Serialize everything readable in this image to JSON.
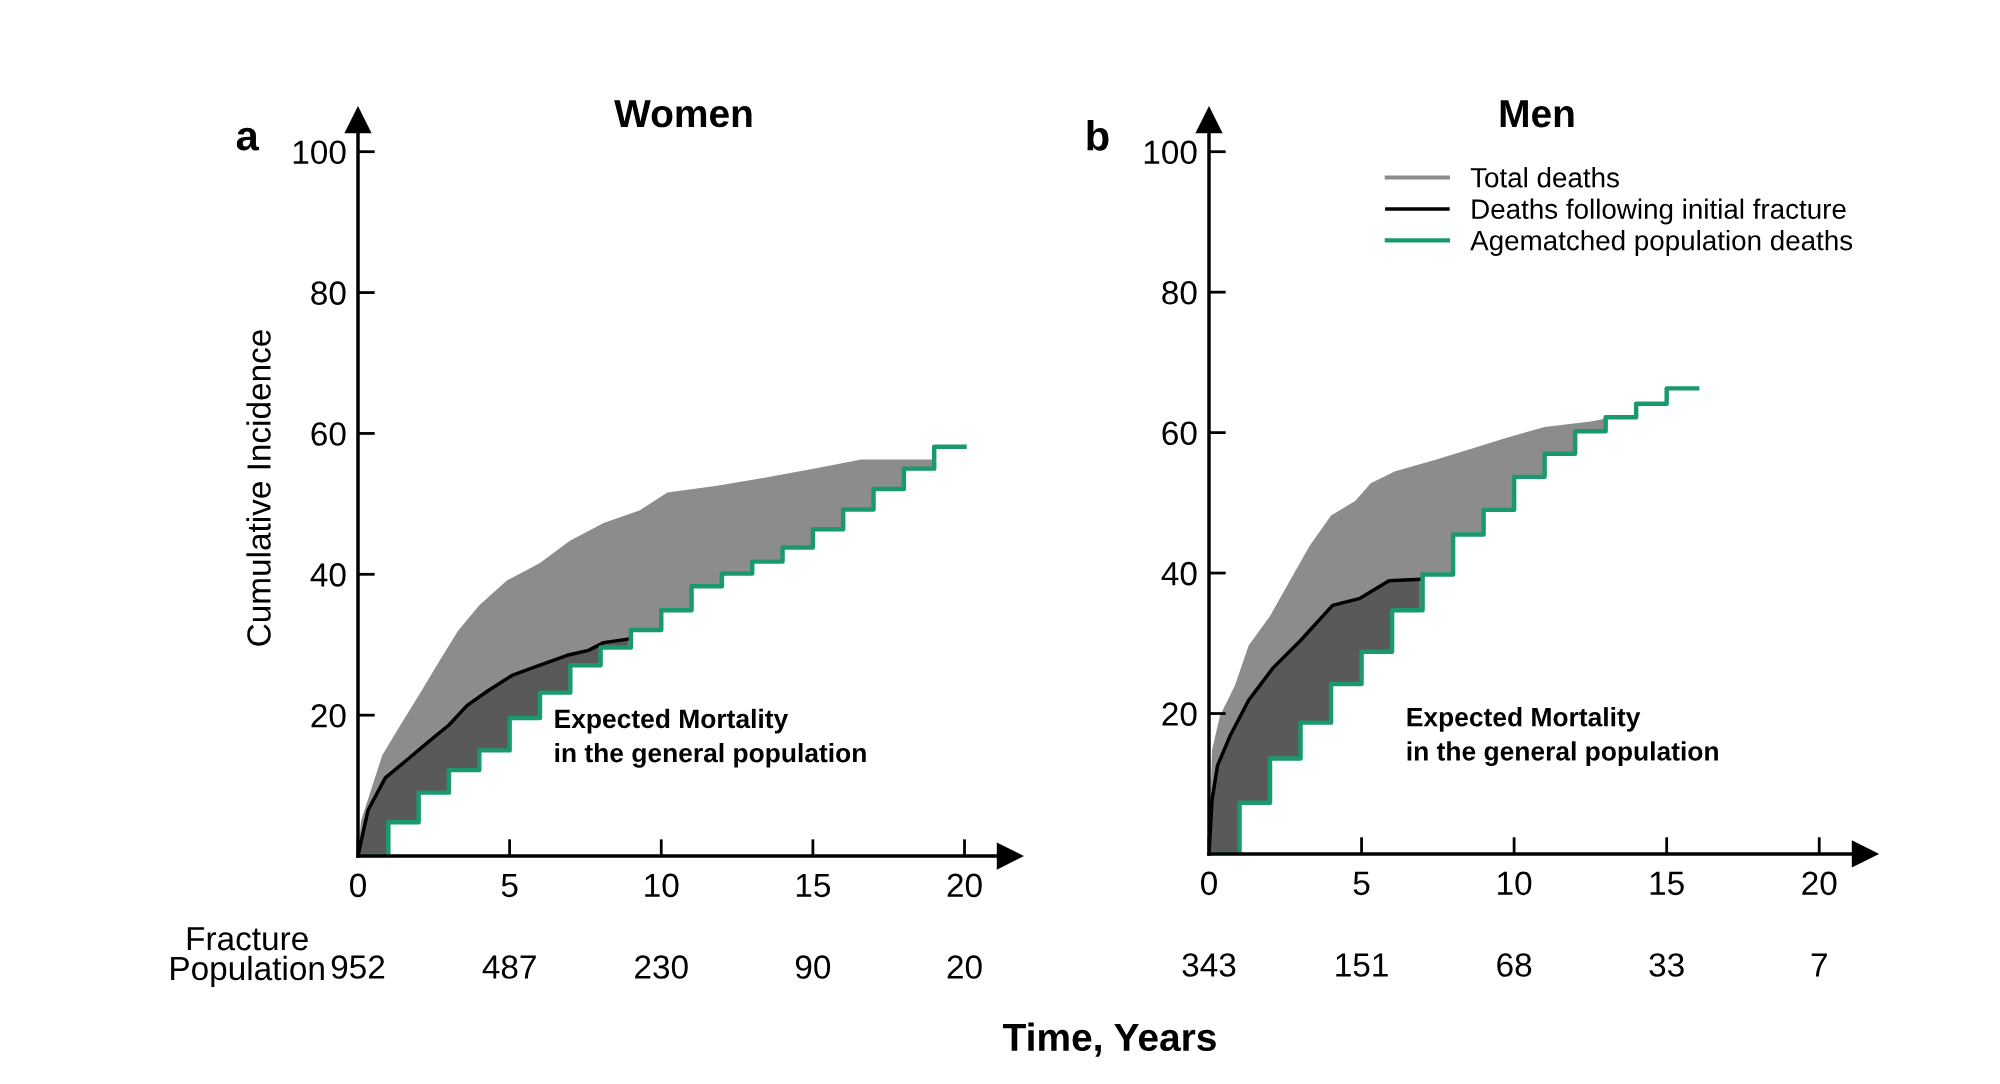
{
  "chart_data": [
    {
      "type": "area",
      "title": "Women",
      "ylabel": "Cumulative Incidence",
      "xlabel": "Time, Years",
      "xlim": [
        0,
        21.5
      ],
      "ylim": [
        0,
        104.5
      ],
      "xticks": [
        0,
        5,
        10,
        15,
        20
      ],
      "yticks": [
        20,
        40,
        60,
        80,
        100
      ],
      "grid": false,
      "legend": false,
      "series": [
        {
          "color": "#8c8c8c",
          "x": [
            0,
            0.1,
            0.8,
            1.4,
            2.0,
            2.7,
            3.3,
            4.0,
            4.9,
            6.0,
            7.0,
            8.1,
            9.3,
            10.2,
            11.9,
            13.4,
            14.8,
            16.6,
            19.0
          ],
          "values": [
            0,
            5,
            14.3,
            18.6,
            22.8,
            27.8,
            32,
            35.6,
            39.1,
            41.6,
            44.8,
            47.3,
            49.1,
            51.6,
            52.6,
            53.7,
            54.8,
            56.3,
            56.3
          ]
        },
        {
          "color": "#000000",
          "line_style": "solid",
          "x": [
            0,
            0.15,
            0.33,
            0.9,
            1.6,
            2.4,
            3.0,
            3.6,
            4.3,
            5.1,
            6.0,
            6.9,
            7.6,
            8.1,
            8.9
          ],
          "values": [
            0,
            3,
            6.5,
            11.1,
            13.6,
            16.5,
            18.6,
            21.4,
            23.5,
            25.7,
            27.1,
            28.5,
            29.2,
            30.3,
            30.8
          ]
        },
        {
          "type": "step",
          "color": "#1a9a6c",
          "x": [
            0,
            1,
            2,
            3,
            4,
            5,
            6,
            7,
            8,
            9,
            10,
            11,
            12,
            13,
            14,
            15,
            16,
            17,
            18,
            19,
            20
          ],
          "values": [
            0,
            4.8,
            9.0,
            12.2,
            15.0,
            19.6,
            23.2,
            27.1,
            29.6,
            32.1,
            34.9,
            38.3,
            40.1,
            41.8,
            43.8,
            46.4,
            49.2,
            52.1,
            55.0,
            58.1,
            58.1
          ]
        }
      ],
      "annotations": [
        "a",
        "Expected Mortality\nin the general population",
        "Fracture\nPopulation",
        "952",
        "487",
        "230",
        "90",
        "20"
      ]
    },
    {
      "type": "area",
      "title": "Men",
      "xlim": [
        0,
        21.5
      ],
      "ylim": [
        0,
        104.5
      ],
      "xticks": [
        0,
        5,
        10,
        15,
        20
      ],
      "yticks": [
        20,
        40,
        60,
        80,
        100
      ],
      "grid": false,
      "legend": "top right",
      "series": [
        {
          "name": "Total deaths",
          "color": "#8c8c8c",
          "x": [
            0,
            0.1,
            0.36,
            0.85,
            1.3,
            2.0,
            2.65,
            3.3,
            4.0,
            4.8,
            5.3,
            6.1,
            7.4,
            8.6,
            9.7,
            11.0,
            12.5,
            13.5
          ],
          "values": [
            0,
            14.8,
            19.7,
            24,
            29.7,
            33.9,
            38.9,
            43.9,
            48.2,
            50.3,
            52.8,
            54.5,
            56.1,
            57.7,
            59.2,
            60.8,
            61.6,
            62.4
          ]
        },
        {
          "name": "Deaths following initial fracture",
          "color": "#000000",
          "line_style": "solid",
          "x": [
            0,
            0.1,
            0.28,
            0.7,
            1.3,
            2.1,
            3.0,
            4.05,
            4.95,
            5.9,
            6.9
          ],
          "values": [
            0,
            7.7,
            12.6,
            16.9,
            21.9,
            26.5,
            30.4,
            35.4,
            36.4,
            38.9,
            39.1
          ]
        },
        {
          "type": "step",
          "name": "Agematched population deaths",
          "color": "#1a9a6c",
          "x": [
            0,
            1,
            2,
            3,
            4,
            5,
            6,
            7,
            8,
            9,
            10,
            11,
            12,
            13,
            14,
            15,
            16
          ],
          "values": [
            0,
            7.3,
            13.6,
            18.7,
            24.2,
            28.8,
            34.7,
            39.8,
            45.5,
            49.0,
            53.7,
            57.0,
            60.2,
            62.2,
            64.1,
            66.3,
            66.3
          ]
        }
      ],
      "annotations": [
        "b",
        "Expected Mortality\nin the general population",
        "343",
        "151",
        "68",
        "33",
        "7"
      ]
    }
  ]
}
